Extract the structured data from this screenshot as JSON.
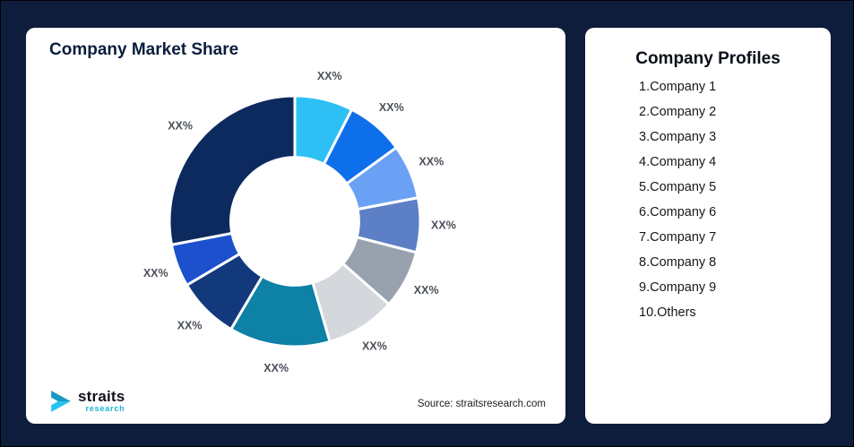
{
  "theme": {
    "page_bg": "#0f1d3d",
    "card_bg": "#ffffff",
    "title_color": "#0a1e3c",
    "slice_label_color": "#4a4f59",
    "logo_accent": "#19b6d8"
  },
  "left_card": {
    "title": "Company Market Share",
    "source": "Source: straitsresearch.com",
    "logo": {
      "brand": "straits",
      "sub": "research"
    }
  },
  "right_card": {
    "title": "Company Profiles",
    "items": [
      "1.Company 1",
      "2.Company 2",
      "3.Company 3",
      "4.Company 4",
      "5.Company 5",
      "6.Company 6",
      "7.Company 7",
      "8.Company 8",
      "9.Company 9",
      "10.Others"
    ]
  },
  "chart_data": {
    "type": "pie",
    "subtype": "donut",
    "title": "Company Market Share",
    "categories": [
      "Company 1",
      "Company 2",
      "Company 3",
      "Company 4",
      "Company 5",
      "Company 6",
      "Company 7",
      "Company 8",
      "Company 9",
      "Others"
    ],
    "values": [
      7.5,
      7.5,
      7,
      7,
      7.5,
      9,
      13,
      8,
      5.5,
      28
    ],
    "value_labels": [
      "XX%",
      "XX%",
      "XX%",
      "XX%",
      "XX%",
      "XX%",
      "XX%",
      "XX%",
      "XX%",
      "XX%"
    ],
    "colors": [
      "#2ec0f5",
      "#0e6feb",
      "#6aa1f4",
      "#5c7fc5",
      "#98a2ae",
      "#d4d8dc",
      "#0d81a6",
      "#12397b",
      "#1d50cc",
      "#0d2a5e"
    ],
    "start_angle_deg": 0,
    "direction": "clockwise",
    "inner_radius_ratio": 0.51,
    "legend": "none",
    "grid": false
  }
}
